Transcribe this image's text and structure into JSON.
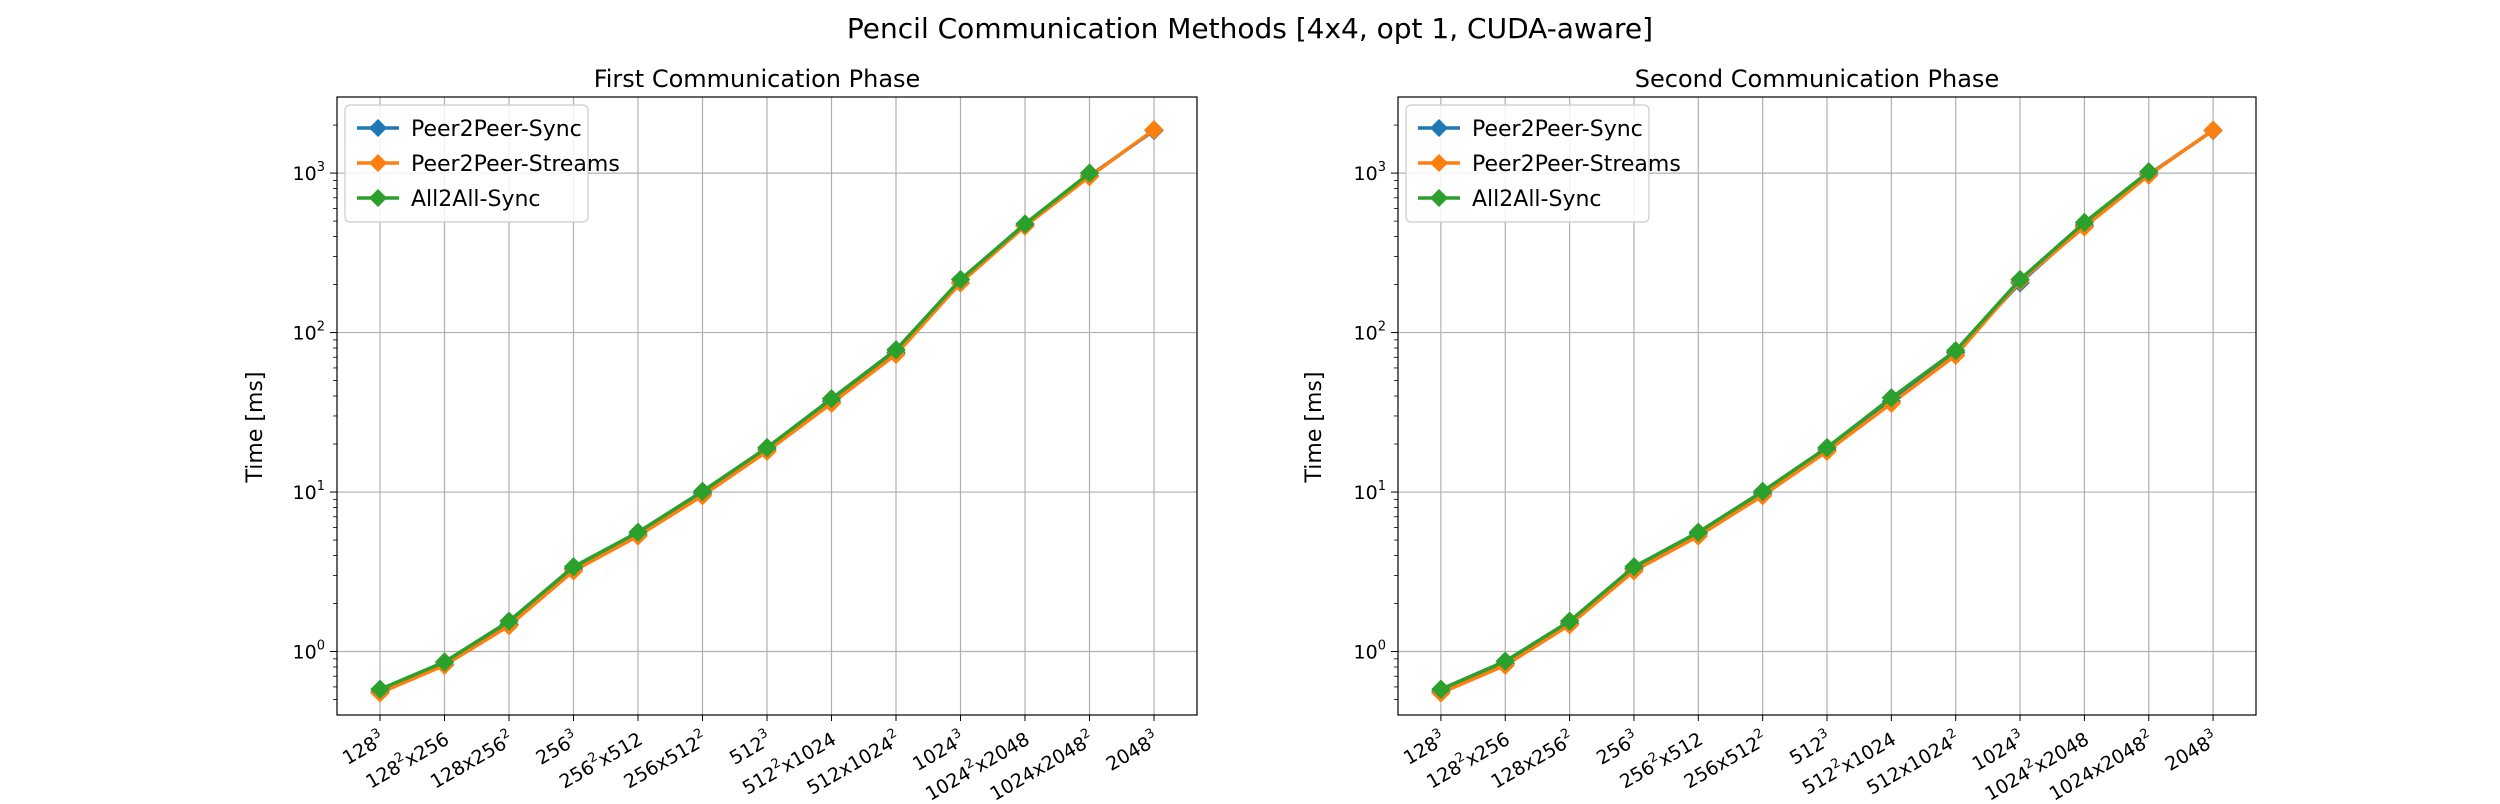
{
  "figure": {
    "title": "Pencil Communication Methods [4x4, opt 1, CUDA-aware]"
  },
  "chart_data": [
    {
      "type": "line",
      "title": "First Communication Phase",
      "xlabel": "",
      "ylabel": "Time [ms]",
      "yscale": "log",
      "ylim": [
        0.4,
        3000
      ],
      "grid": true,
      "legend_position": "top-left",
      "categories": [
        "128^3",
        "128^2x256",
        "128x256^2",
        "256^3",
        "256^2x512",
        "256x512^2",
        "512^3",
        "512^2x1024",
        "512x1024^2",
        "1024^3",
        "1024^2x2048",
        "1024x2048^2",
        "2048^3"
      ],
      "y_ticks": [
        1,
        10,
        100,
        1000
      ],
      "y_tick_labels": [
        "10^0",
        "10^1",
        "10^2",
        "10^3"
      ],
      "series": [
        {
          "name": "Peer2Peer-Sync",
          "color": "#1f77b4",
          "marker": "diamond",
          "values": [
            0.56,
            0.83,
            1.48,
            3.3,
            5.4,
            9.8,
            18.5,
            37,
            75,
            205,
            470,
            960,
            1850
          ]
        },
        {
          "name": "Peer2Peer-Streams",
          "color": "#ff7f0e",
          "marker": "diamond",
          "values": [
            0.55,
            0.82,
            1.45,
            3.2,
            5.3,
            9.5,
            18,
            36,
            73,
            205,
            465,
            950,
            1870
          ]
        },
        {
          "name": "All2All-Sync",
          "color": "#2ca02c",
          "marker": "diamond",
          "values": [
            0.58,
            0.86,
            1.55,
            3.4,
            5.6,
            10.1,
            19,
            38.5,
            78,
            215,
            480,
            1000,
            null
          ]
        }
      ]
    },
    {
      "type": "line",
      "title": "Second Communication Phase",
      "xlabel": "",
      "ylabel": "Time [ms]",
      "yscale": "log",
      "ylim": [
        0.4,
        3000
      ],
      "grid": true,
      "legend_position": "top-left",
      "categories": [
        "128^3",
        "128^2x256",
        "128x256^2",
        "256^3",
        "256^2x512",
        "256x512^2",
        "512^3",
        "512^2x1024",
        "512x1024^2",
        "1024^3",
        "1024^2x2048",
        "1024x2048^2",
        "2048^3"
      ],
      "y_ticks": [
        1,
        10,
        100,
        1000
      ],
      "y_tick_labels": [
        "10^0",
        "10^1",
        "10^2",
        "10^3"
      ],
      "series": [
        {
          "name": "Peer2Peer-Sync",
          "color": "#1f77b4",
          "marker": "diamond",
          "values": [
            0.56,
            0.84,
            1.5,
            3.3,
            5.5,
            9.8,
            18.5,
            37,
            75,
            205,
            470,
            980,
            1850
          ]
        },
        {
          "name": "Peer2Peer-Streams",
          "color": "#ff7f0e",
          "marker": "diamond",
          "values": [
            0.55,
            0.82,
            1.47,
            3.2,
            5.3,
            9.5,
            18,
            36,
            72,
            210,
            460,
            970,
            1860
          ]
        },
        {
          "name": "All2All-Sync",
          "color": "#2ca02c",
          "marker": "diamond",
          "values": [
            0.58,
            0.87,
            1.55,
            3.4,
            5.6,
            10.1,
            19,
            39,
            77,
            215,
            490,
            1020,
            null
          ]
        }
      ]
    }
  ]
}
